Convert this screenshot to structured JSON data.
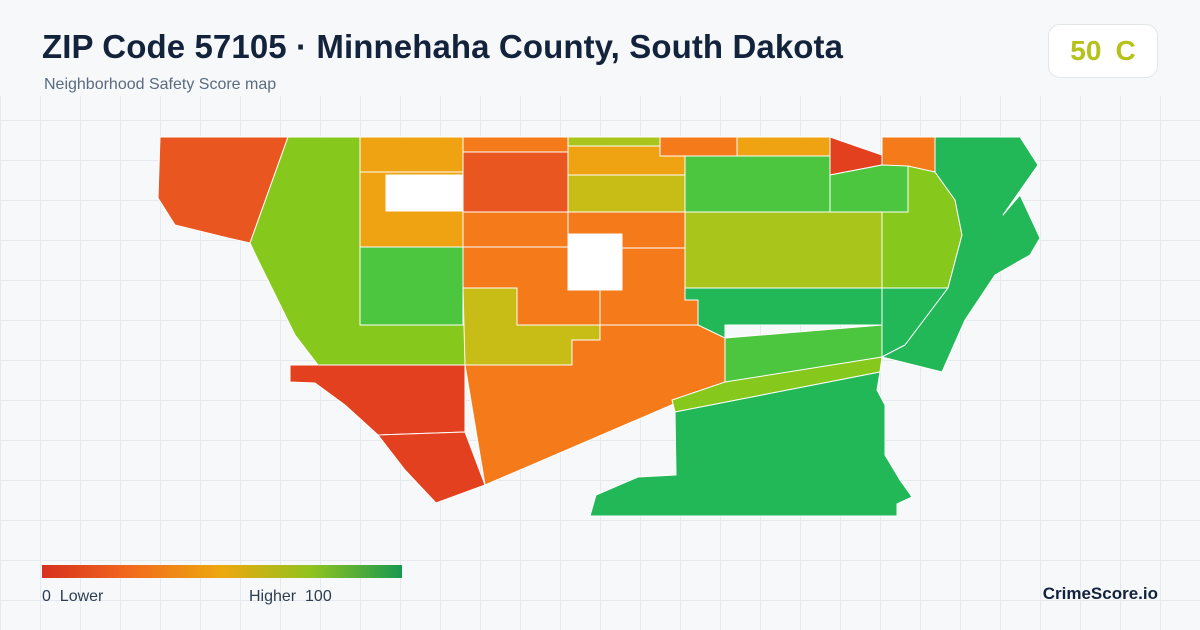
{
  "header": {
    "title": "ZIP Code 57105 · Minnehaha County, South Dakota",
    "subtitle": "Neighborhood Safety Score map"
  },
  "score": {
    "value": "50",
    "grade": "C",
    "color": "#b5c21a"
  },
  "legend": {
    "low_value": "0",
    "low_label": "Lower",
    "high_label": "Higher",
    "high_value": "100",
    "colors": [
      "#d7301f",
      "#f26b1d",
      "#eda80f",
      "#8fc31f",
      "#1a9850"
    ]
  },
  "brand": "CrimeScore.io",
  "palette": {
    "very_low": "#e3401f",
    "low": "#ea561f",
    "orange": "#f47a1a",
    "amber": "#efa312",
    "mustard": "#c8bd16",
    "yellow_green": "#a9c41a",
    "light_green": "#86c91c",
    "green": "#4cc53f",
    "dark_green": "#22b757",
    "blank": "#ffffff"
  }
}
